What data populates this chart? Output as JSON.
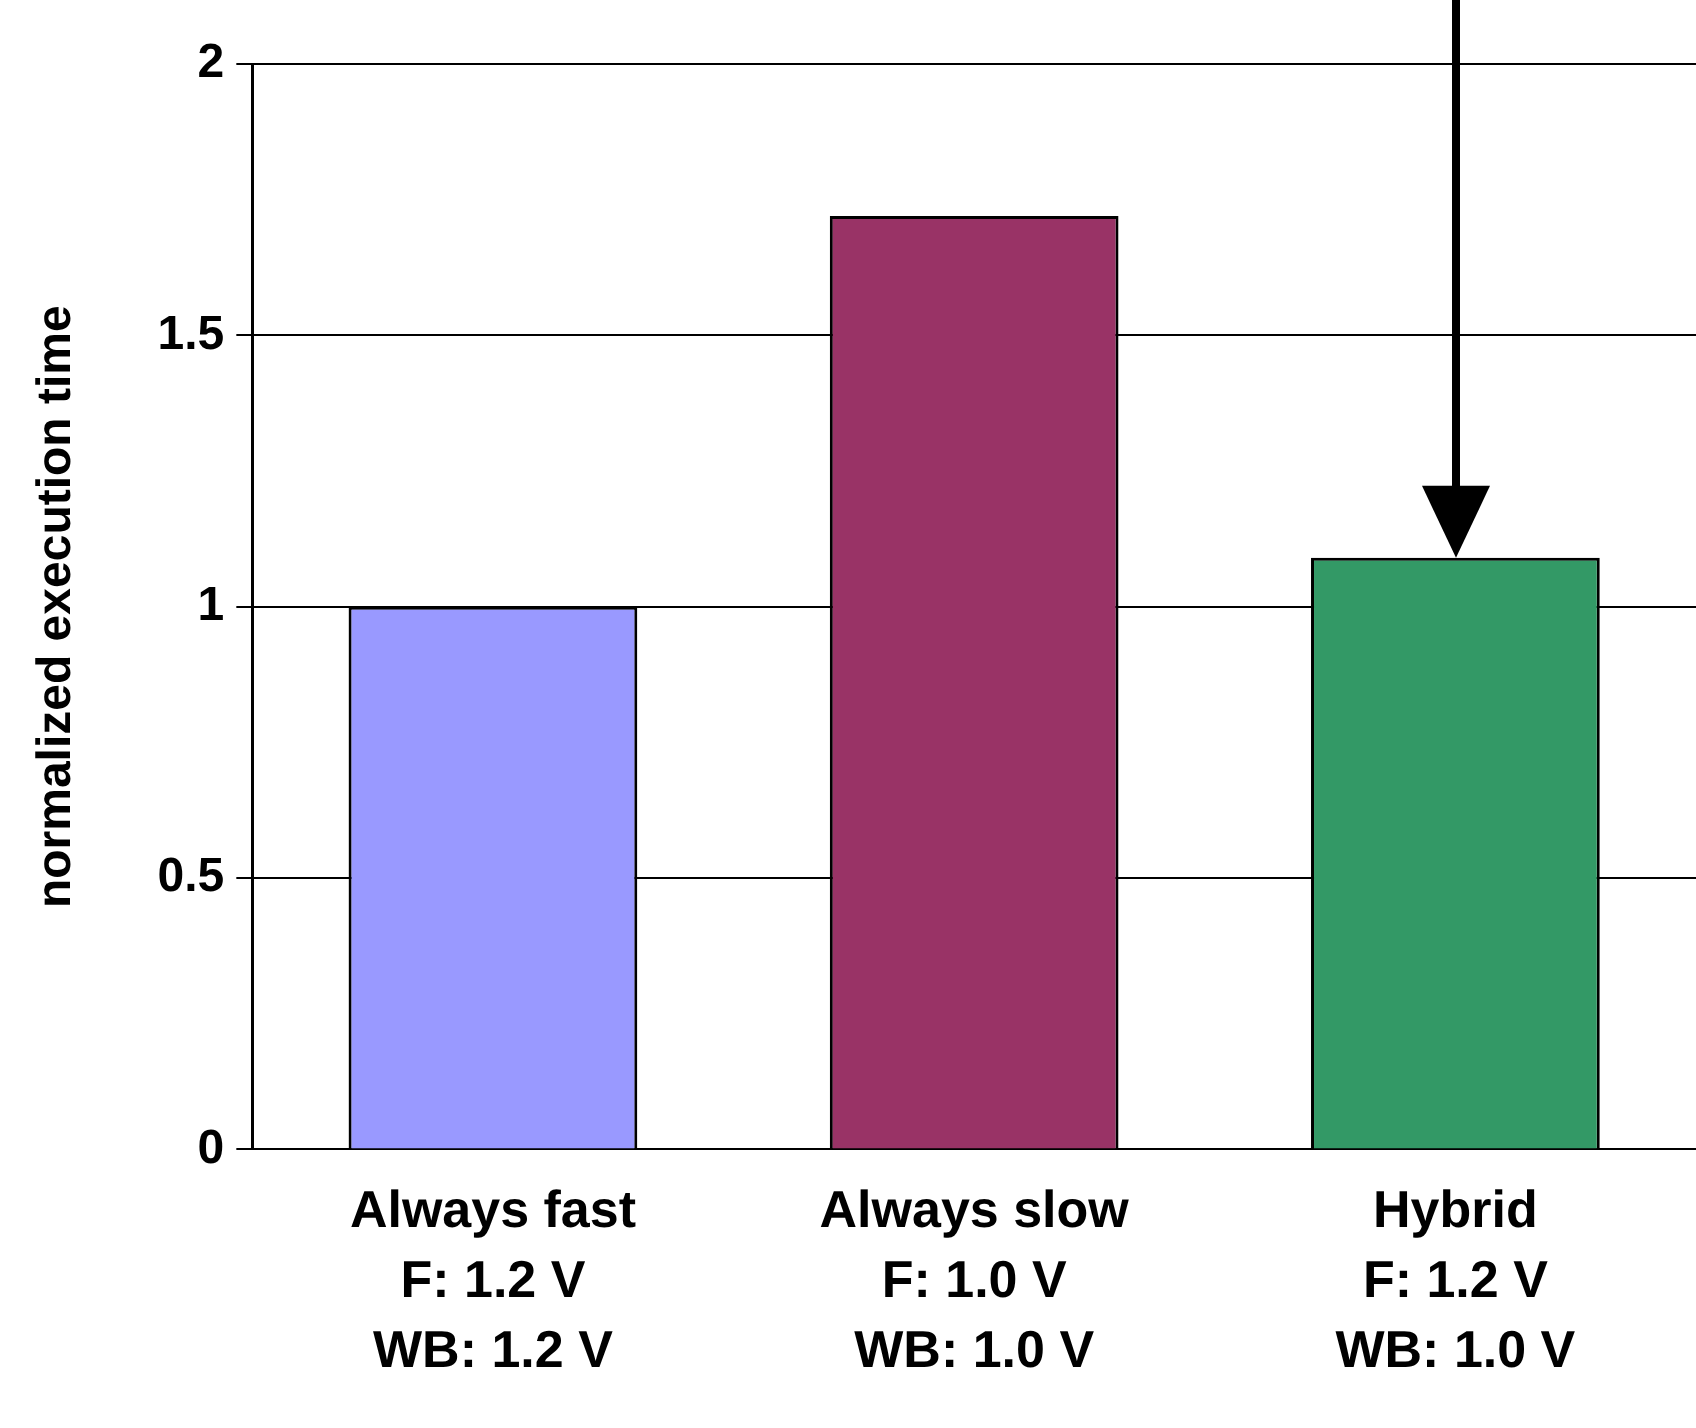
{
  "chart_data": {
    "type": "bar",
    "ylabel": "normalized execution time",
    "categories": [
      "Always fast\nF: 1.2 V\nWB: 1.2 V",
      "Always slow\nF: 1.0 V\nWB: 1.0 V",
      "Hybrid\nF: 1.2 V\nWB: 1.0 V"
    ],
    "values": [
      1.0,
      1.72,
      1.09
    ],
    "colors": [
      "#9999ff",
      "#993366",
      "#339966"
    ],
    "ylim": [
      0,
      2
    ],
    "yticks": [
      0,
      0.5,
      1,
      1.5,
      2
    ],
    "grid": "y",
    "legend": false
  }
}
